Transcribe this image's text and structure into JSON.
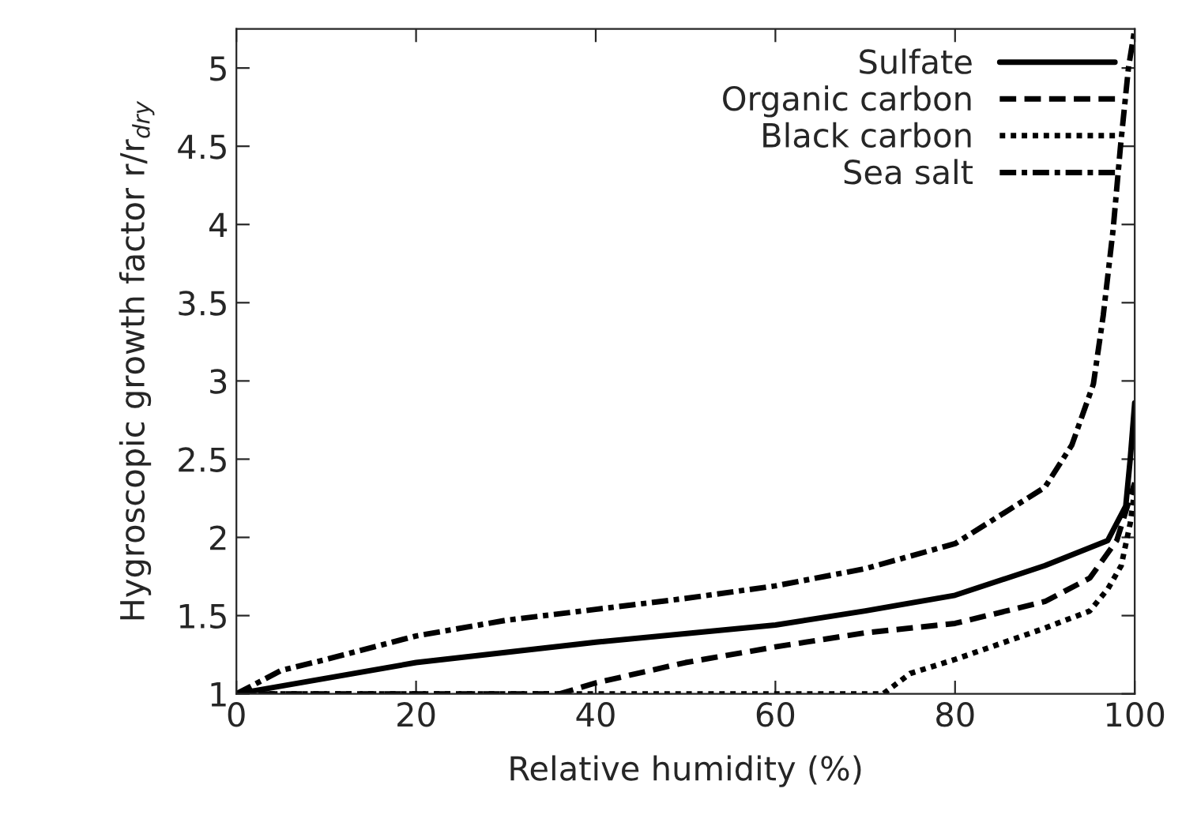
{
  "chart_data": {
    "type": "line",
    "xlabel": "Relative humidity (%)",
    "ylabel": "Hygroscopic growth factor r/r$_{dry}$",
    "xlim": [
      0,
      100
    ],
    "xticks": [
      0,
      20,
      40,
      60,
      80,
      100
    ],
    "ylim": [
      1,
      5.25
    ],
    "yticks": [
      1,
      1.5,
      2,
      2.5,
      3,
      3.5,
      4,
      4.5,
      5
    ],
    "grid": false,
    "legend": "top right",
    "marker": "none",
    "series": [
      {
        "name": "Sulfate",
        "color": "#000000",
        "line_style": "solid",
        "x": [
          0,
          20,
          40,
          60,
          70,
          80,
          90,
          97,
          99,
          99.5,
          100
        ],
        "values": [
          1.0,
          1.2,
          1.33,
          1.44,
          1.53,
          1.63,
          1.82,
          1.98,
          2.2,
          2.5,
          2.86
        ]
      },
      {
        "name": "Organic carbon",
        "color": "#000000",
        "line_style": "dashed",
        "x": [
          0,
          36,
          40,
          50,
          60,
          70,
          80,
          90,
          95,
          98,
          100
        ],
        "values": [
          1.0,
          1.0,
          1.07,
          1.2,
          1.3,
          1.39,
          1.45,
          1.59,
          1.74,
          1.98,
          2.35
        ]
      },
      {
        "name": "Black carbon",
        "color": "#000000",
        "line_style": "dotted",
        "x": [
          0,
          72,
          75,
          80,
          85,
          90,
          95,
          97,
          98.5,
          99.5,
          100
        ],
        "values": [
          1.0,
          1.0,
          1.13,
          1.22,
          1.32,
          1.42,
          1.53,
          1.67,
          1.82,
          2.09,
          2.3
        ]
      },
      {
        "name": "Sea salt",
        "color": "#000000",
        "line_style": "dashdot",
        "x": [
          0,
          5,
          10,
          20,
          30,
          40,
          50,
          60,
          70,
          80,
          90,
          93,
          95.4,
          96.5,
          97.6,
          98.4,
          99.3,
          100
        ],
        "values": [
          1.0,
          1.15,
          1.22,
          1.37,
          1.47,
          1.54,
          1.61,
          1.69,
          1.8,
          1.96,
          2.32,
          2.59,
          2.98,
          3.42,
          3.97,
          4.49,
          5.0,
          5.25
        ]
      }
    ]
  }
}
